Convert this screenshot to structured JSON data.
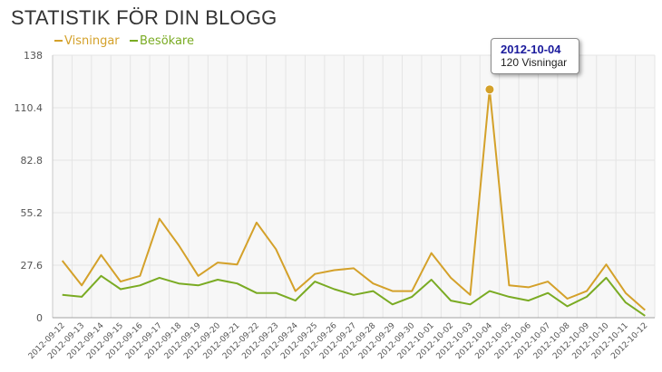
{
  "page": {
    "title": "STATISTIK FÖR DIN BLOGG"
  },
  "colors": {
    "visningar": "#d4a12a",
    "besokare": "#7aab23",
    "grid": "#e4e4e4",
    "background": "#f7f7f7",
    "tooltip_title": "#1a1a9c"
  },
  "tooltip": {
    "title": "2012-10-04",
    "body": "120 Visningar"
  },
  "chart_data": {
    "type": "line",
    "title": "",
    "xlabel": "",
    "ylabel": "",
    "ylim": [
      0,
      138
    ],
    "y_ticks": [
      "0",
      "27.6",
      "55.2",
      "82.8",
      "110.4",
      "138"
    ],
    "grid": true,
    "legend_position": "top-left",
    "categories": [
      "2012-09-12",
      "2012-09-13",
      "2012-09-14",
      "2012-09-15",
      "2012-09-16",
      "2012-09-17",
      "2012-09-18",
      "2012-09-19",
      "2012-09-20",
      "2012-09-21",
      "2012-09-22",
      "2012-09-23",
      "2012-09-24",
      "2012-09-25",
      "2012-09-26",
      "2012-09-27",
      "2012-09-28",
      "2012-09-29",
      "2012-09-30",
      "2012-10-01",
      "2012-10-02",
      "2012-10-03",
      "2012-10-04",
      "2012-10-05",
      "2012-10-06",
      "2012-10-07",
      "2012-10-08",
      "2012-10-09",
      "2012-10-10",
      "2012-10-11",
      "2012-10-12"
    ],
    "series": [
      {
        "name": "Visningar",
        "color": "#d4a12a",
        "values": [
          30,
          17,
          33,
          19,
          22,
          52,
          38,
          22,
          29,
          28,
          50,
          36,
          14,
          23,
          25,
          26,
          18,
          14,
          14,
          34,
          21,
          12,
          120,
          17,
          16,
          19,
          10,
          14,
          28,
          13,
          4
        ]
      },
      {
        "name": "Besökare",
        "color": "#7aab23",
        "values": [
          12,
          11,
          22,
          15,
          17,
          21,
          18,
          17,
          20,
          18,
          13,
          13,
          9,
          19,
          15,
          12,
          14,
          7,
          11,
          20,
          9,
          7,
          14,
          11,
          9,
          13,
          6,
          11,
          21,
          8,
          1
        ]
      }
    ],
    "highlight": {
      "series": "Visningar",
      "category": "2012-10-04",
      "value": 120
    }
  }
}
